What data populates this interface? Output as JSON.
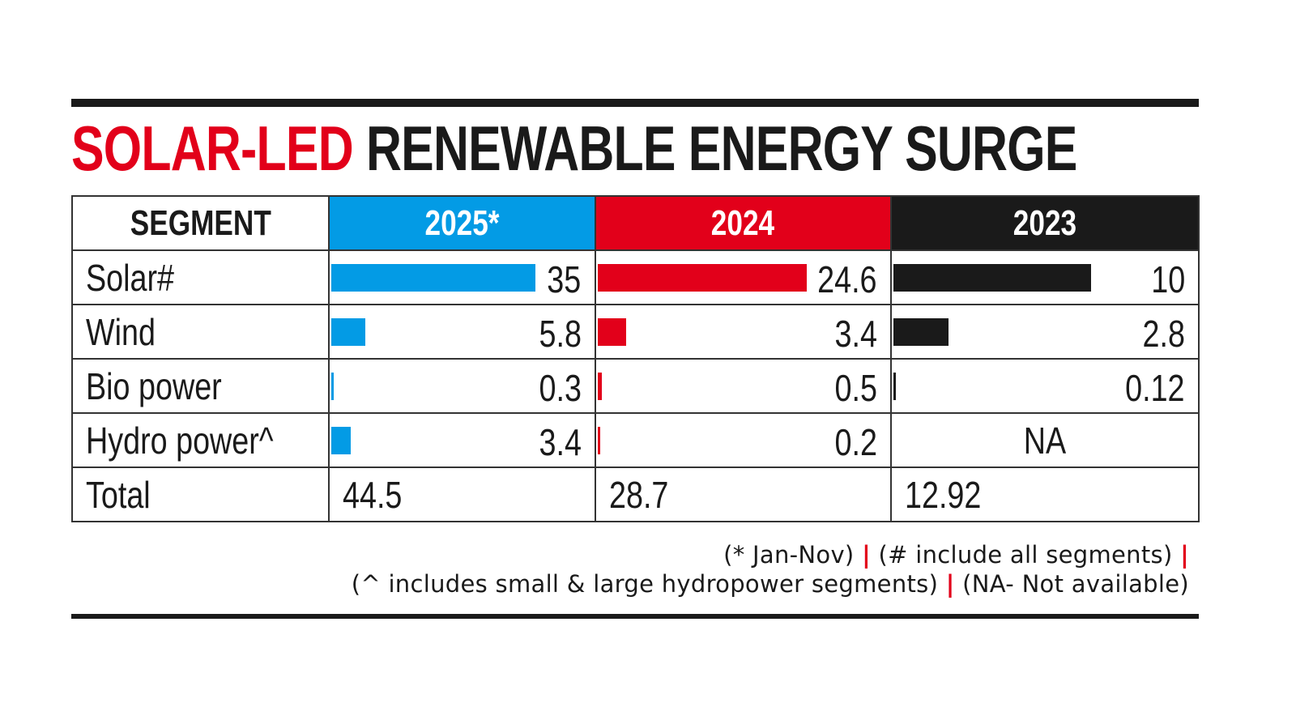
{
  "title": {
    "highlight": "SOLAR-LED",
    "rest": "RENEWABLE ENERGY SURGE"
  },
  "colors": {
    "2025": "#039be5",
    "2024": "#e2001a",
    "2023": "#1a1a1a",
    "accent": "#e2001a"
  },
  "chart_data": {
    "type": "table",
    "title": "SOLAR-LED RENEWABLE ENERGY SURGE",
    "header": "SEGMENT",
    "columns": [
      "2025*",
      "2024",
      "2023"
    ],
    "rows": [
      {
        "segment": "Solar#",
        "values": [
          "35",
          "24.6",
          "10"
        ]
      },
      {
        "segment": "Wind",
        "values": [
          "5.8",
          "3.4",
          "2.8"
        ]
      },
      {
        "segment": "Bio power",
        "values": [
          "0.3",
          "0.5",
          "0.12"
        ]
      },
      {
        "segment": "Hydro power^",
        "values": [
          "3.4",
          "0.2",
          "NA"
        ]
      }
    ],
    "total": {
      "label": "Total",
      "values": [
        "44.5",
        "28.7",
        "12.92"
      ]
    }
  },
  "notes": {
    "line1": [
      "(* Jan-Nov)",
      "(# include all segments)"
    ],
    "line2": [
      "(^ includes small & large hydropower segments)",
      "(NA- Not available)"
    ],
    "separator": "|"
  }
}
